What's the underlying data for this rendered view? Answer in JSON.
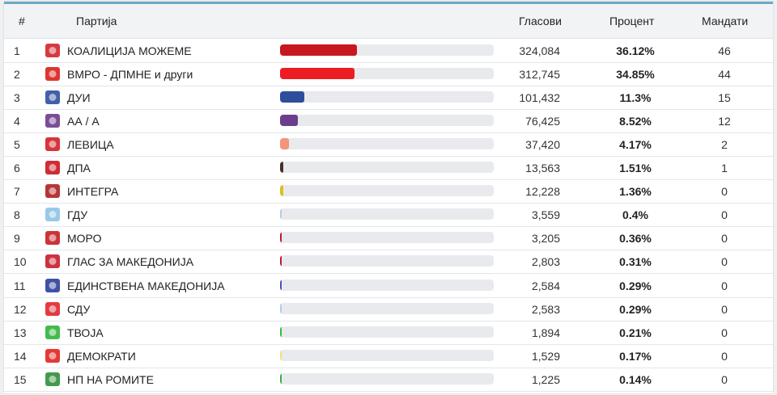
{
  "header": {
    "num": "#",
    "party": "Партија",
    "votes": "Гласови",
    "percent": "Процент",
    "seats": "Мандати"
  },
  "rows": [
    {
      "num": "1",
      "name": "КОАЛИЦИЈА МОЖЕМЕ",
      "votes": "324,084",
      "percent": "36.12%",
      "seats": "46",
      "share": 36.12,
      "color": "#c8171e",
      "logo": "sdsm-logo-icon",
      "logo_color": "#d0252b"
    },
    {
      "num": "2",
      "name": "ВМРО - ДПМНЕ и други",
      "votes": "312,745",
      "percent": "34.85%",
      "seats": "44",
      "share": 34.85,
      "color": "#ec1c24",
      "logo": "vmro-lion-icon",
      "logo_color": "#d7211a"
    },
    {
      "num": "3",
      "name": "ДУИ",
      "votes": "101,432",
      "percent": "11.3%",
      "seats": "15",
      "share": 11.3,
      "color": "#2e4e9c",
      "logo": "dui-emblem-icon",
      "logo_color": "#2d4fa0"
    },
    {
      "num": "4",
      "name": "АА / А",
      "votes": "76,425",
      "percent": "8.52%",
      "seats": "12",
      "share": 8.52,
      "color": "#6b3f8c",
      "logo": "aa-a-logo-icon",
      "logo_color": "#6a3a8c"
    },
    {
      "num": "5",
      "name": "ЛЕВИЦА",
      "votes": "37,420",
      "percent": "4.17%",
      "seats": "2",
      "share": 4.17,
      "color": "#f3957a",
      "logo": "levica-star-icon",
      "logo_color": "#d01f26"
    },
    {
      "num": "6",
      "name": "ДПА",
      "votes": "13,563",
      "percent": "1.51%",
      "seats": "1",
      "share": 1.51,
      "color": "#4a3022",
      "logo": "dpa-eagle-icon",
      "logo_color": "#c9161f"
    },
    {
      "num": "7",
      "name": "ИНТЕГРА",
      "votes": "12,228",
      "percent": "1.36%",
      "seats": "0",
      "share": 1.36,
      "color": "#d8c21a",
      "logo": "integra-lion-icon",
      "logo_color": "#b01f1f"
    },
    {
      "num": "8",
      "name": "ГДУ",
      "votes": "3,559",
      "percent": "0.4%",
      "seats": "0",
      "share": 0.4,
      "color": "#b7cbe6",
      "logo": "gdu-circle-icon",
      "logo_color": "#8cc3e6"
    },
    {
      "num": "9",
      "name": "МОРО",
      "votes": "3,205",
      "percent": "0.36%",
      "seats": "0",
      "share": 0.36,
      "color": "#b41e2e",
      "logo": "moro-shield-icon",
      "logo_color": "#c81d25"
    },
    {
      "num": "10",
      "name": "ГЛАС ЗА МАКЕДОНИЈА",
      "votes": "2,803",
      "percent": "0.31%",
      "seats": "0",
      "share": 0.31,
      "color": "#c0182c",
      "logo": "glas-logo-icon",
      "logo_color": "#c61d2b"
    },
    {
      "num": "11",
      "name": "ЕДИНСТВЕНА МАКЕДОНИЈА",
      "votes": "2,584",
      "percent": "0.29%",
      "seats": "0",
      "share": 0.29,
      "color": "#4b4fbf",
      "logo": "edinstvena-map-icon",
      "logo_color": "#2a3f9c"
    },
    {
      "num": "12",
      "name": "СДУ",
      "votes": "2,583",
      "percent": "0.29%",
      "seats": "0",
      "share": 0.29,
      "color": "#b8c8ef",
      "logo": "sdu-sun-icon",
      "logo_color": "#e0262b"
    },
    {
      "num": "13",
      "name": "ТВОЈА",
      "votes": "1,894",
      "percent": "0.21%",
      "seats": "0",
      "share": 0.21,
      "color": "#2fbf3a",
      "logo": "tvoja-leaf-icon",
      "logo_color": "#2fb53a"
    },
    {
      "num": "14",
      "name": "ДЕМОКРАТИ",
      "votes": "1,529",
      "percent": "0.17%",
      "seats": "0",
      "share": 0.17,
      "color": "#f1e27a",
      "logo": "demokrati-sun-icon",
      "logo_color": "#e1231e"
    },
    {
      "num": "15",
      "name": "НП НА РОМИТЕ",
      "votes": "1,225",
      "percent": "0.14%",
      "seats": "0",
      "share": 0.14,
      "color": "#3cb043",
      "logo": "romi-wheel-icon",
      "logo_color": "#2f8f3a"
    }
  ]
}
